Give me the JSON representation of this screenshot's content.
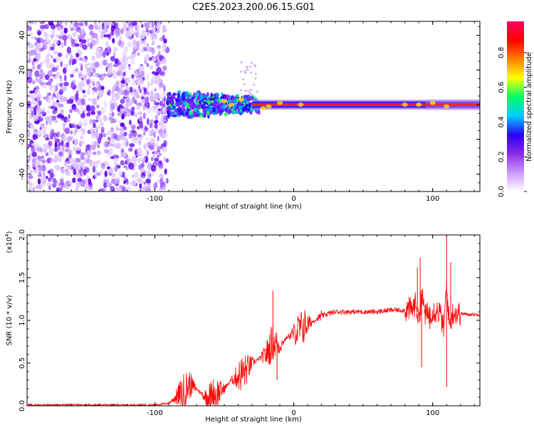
{
  "title": "C2E5.2023.200.06.15.G01",
  "colorbar": {
    "label": "Normalized spectral amplitude",
    "ticks": [
      "0.0",
      "0.2",
      "0.4",
      "0.6",
      "0.8"
    ],
    "stops": [
      "#ffffff",
      "#cc99ff",
      "#8a2be2",
      "#2a00ff",
      "#00ccff",
      "#00ff66",
      "#ffff00",
      "#ff8000",
      "#ff0000",
      "#ff0066"
    ]
  },
  "chart_data": [
    {
      "type": "heatmap",
      "xlabel": "Height of straight line (km)",
      "ylabel": "Frequency (Hz)",
      "xlim": [
        -192,
        134
      ],
      "ylim": [
        -50,
        48
      ],
      "xticks": [
        -100,
        0,
        100
      ],
      "yticks": [
        -40,
        -20,
        0,
        20,
        40
      ],
      "description_values": {
        "noise_region_x": [
          -192,
          -91
        ],
        "signal_center_freq_hz": 0
      }
    },
    {
      "type": "line",
      "xlabel": "Height of straight line (km)",
      "ylabel": "SNR (10 * v/v)",
      "y_multiplier": "(x10",
      "y_multiplier_exp": "4",
      "xlim": [
        -192,
        134
      ],
      "ylim": [
        0,
        2.0
      ],
      "xticks": [
        -100,
        0,
        100
      ],
      "yticks": [
        "0.0",
        "0.5",
        "1.0",
        "1.5",
        "2.0"
      ],
      "series": [
        {
          "color": "#ff0000",
          "x": [
            -192,
            -150,
            -100,
            -90,
            -85,
            -80,
            -75,
            -70,
            -65,
            -60,
            -55,
            -50,
            -45,
            -40,
            -35,
            -30,
            -25,
            -20,
            -15,
            -10,
            -5,
            0,
            5,
            10,
            15,
            20,
            25,
            30,
            40,
            50,
            60,
            70,
            80,
            85,
            88,
            90,
            92,
            95,
            100,
            105,
            108,
            110,
            112,
            115,
            120,
            125,
            134
          ],
          "y": [
            0.01,
            0.01,
            0.01,
            0.03,
            0.1,
            0.15,
            0.25,
            0.2,
            0.12,
            0.1,
            0.15,
            0.2,
            0.3,
            0.35,
            0.4,
            0.5,
            0.55,
            0.6,
            0.75,
            0.7,
            0.8,
            0.85,
            0.9,
            0.95,
            1.0,
            1.05,
            1.08,
            1.1,
            1.1,
            1.1,
            1.1,
            1.12,
            1.12,
            1.13,
            1.2,
            1.0,
            1.3,
            1.05,
            1.12,
            1.1,
            0.9,
            1.4,
            0.95,
            1.1,
            1.08,
            1.07,
            1.07
          ],
          "spikes": [
            {
              "x": -15,
              "y": 1.35
            },
            {
              "x": -12,
              "y": 0.3
            },
            {
              "x": 8,
              "y": 1.12
            },
            {
              "x": 89,
              "y": 1.62
            },
            {
              "x": 91,
              "y": 1.73
            },
            {
              "x": 92,
              "y": 0.45
            },
            {
              "x": 98,
              "y": 0.9
            },
            {
              "x": 110,
              "y": 2.0
            },
            {
              "x": 110,
              "y": 0.22
            },
            {
              "x": 113,
              "y": 1.68
            }
          ]
        }
      ]
    }
  ]
}
